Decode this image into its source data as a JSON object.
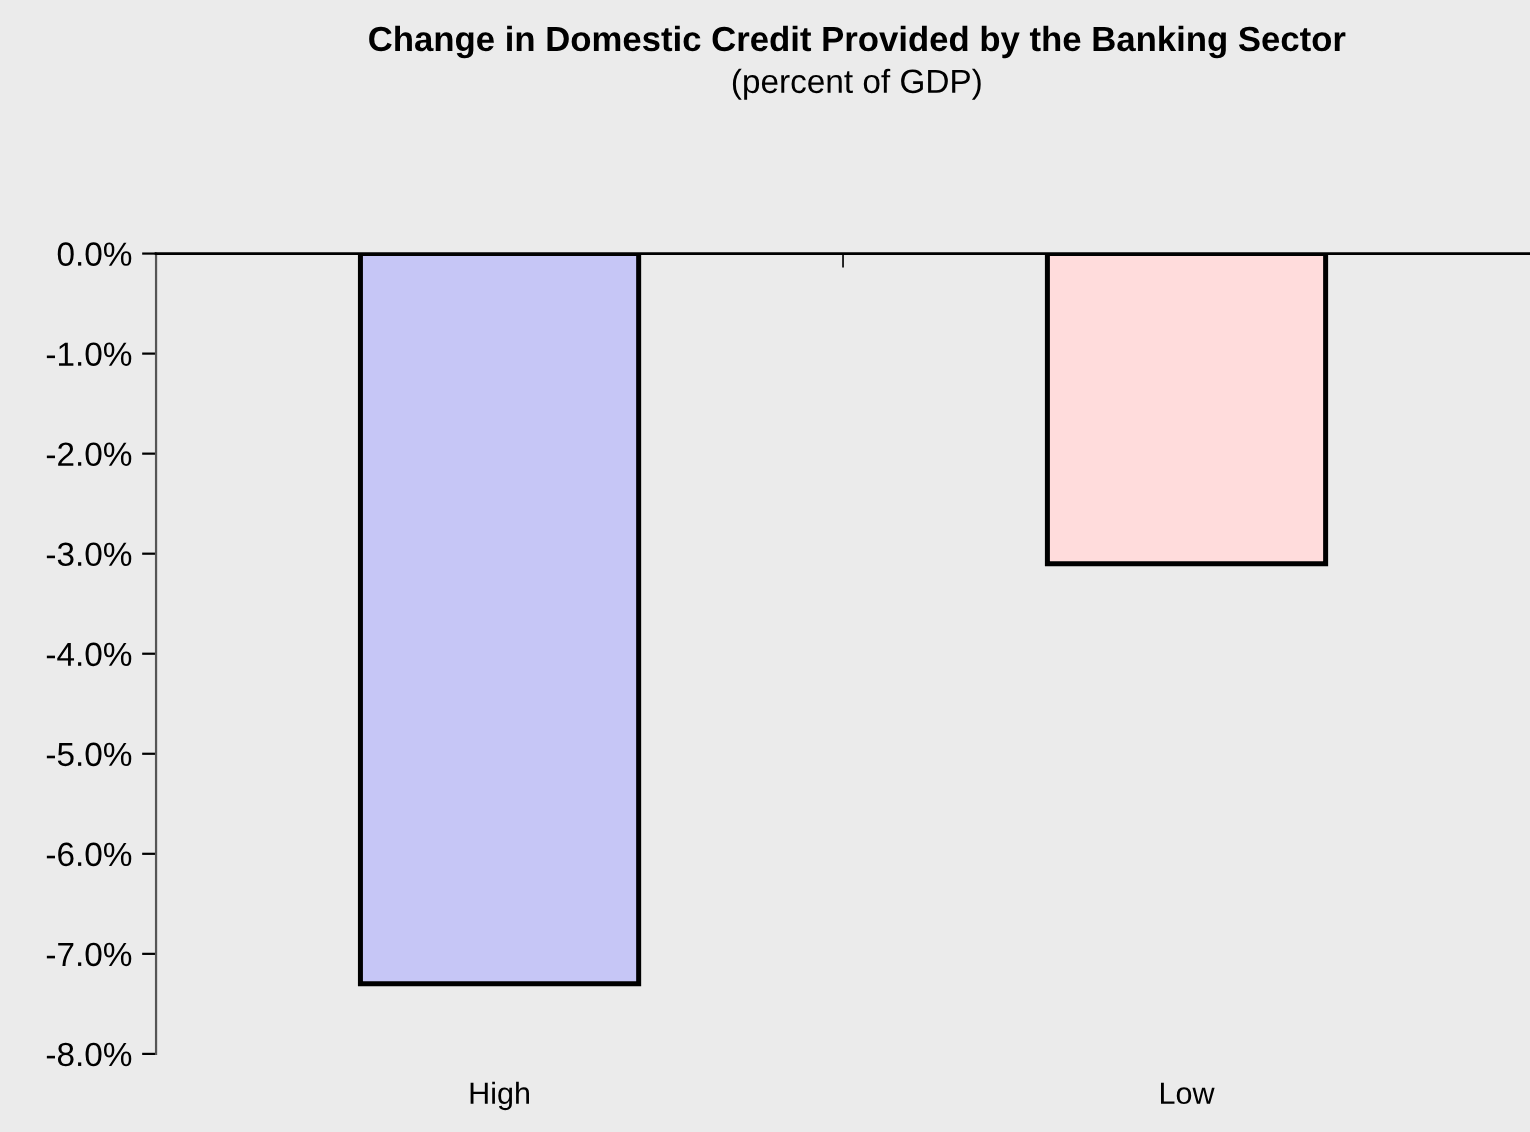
{
  "chart_data": {
    "type": "bar",
    "title": "Change in Domestic Credit Provided by the Banking Sector",
    "subtitle": "(percent of GDP)",
    "categories": [
      "High",
      "Low"
    ],
    "values": [
      -7.3,
      -3.1
    ],
    "colors": [
      "#c6c6f6",
      "#ffdcdc"
    ],
    "ylim": [
      -8,
      0
    ],
    "yticks": [
      {
        "value": 0,
        "label": "0.0%"
      },
      {
        "value": -1,
        "label": "-1.0%"
      },
      {
        "value": -2,
        "label": "-2.0%"
      },
      {
        "value": -3,
        "label": "-3.0%"
      },
      {
        "value": -4,
        "label": "-4.0%"
      },
      {
        "value": -5,
        "label": "-5.0%"
      },
      {
        "value": -6,
        "label": "-6.0%"
      },
      {
        "value": -7,
        "label": "-7.0%"
      },
      {
        "value": -8,
        "label": "-8.0%"
      }
    ],
    "grid": false,
    "legend": false
  }
}
